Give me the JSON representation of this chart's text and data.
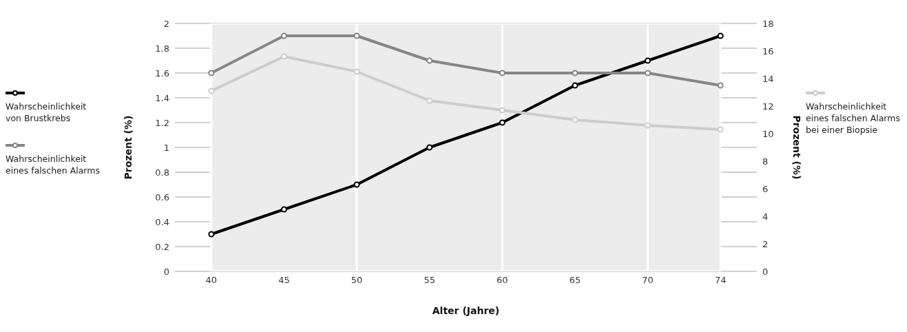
{
  "chart_data": {
    "type": "line",
    "xlabel": "Alter (Jahre)",
    "ylabel": "Prozent (%)",
    "y2label": "Prozent (%)",
    "categories": [
      "40",
      "45",
      "50",
      "55",
      "60",
      "65",
      "70",
      "74"
    ],
    "series": [
      {
        "name": "Wahrscheinlichkeit von Brustkrebs",
        "color": "#000000",
        "values": [
          0.3,
          0.5,
          0.7,
          1.0,
          1.2,
          1.5,
          1.7,
          1.9
        ]
      },
      {
        "name": "Wahrscheinlichkeit eines falschen Alarms",
        "color": "#868686",
        "values": [
          1.6,
          1.9,
          1.9,
          1.7,
          1.6,
          1.6,
          1.6,
          1.5
        ]
      },
      {
        "name": "Wahrscheinlichkeit eines falschen Alarms bei einer Biopsie",
        "color": "#cccccc",
        "axis": "y2",
        "values": [
          13.1,
          15.6,
          14.5,
          12.4,
          11.7,
          11.0,
          10.6,
          10.3
        ]
      }
    ],
    "ylim": [
      0,
      2
    ],
    "yticks": [
      0,
      0.2,
      0.4,
      0.6,
      0.8,
      1,
      1.2,
      1.4,
      1.6,
      1.8,
      2
    ],
    "y2lim": [
      0,
      18
    ],
    "y2ticks": [
      0,
      2,
      4,
      6,
      8,
      10,
      12,
      14,
      16,
      18
    ],
    "bands": [
      {
        "axis": "x",
        "from": "40",
        "to": "50",
        "color": "#ebeceb"
      },
      {
        "axis": "x",
        "from": "50",
        "to": "60",
        "color": "#ebeceb"
      },
      {
        "axis": "x",
        "from": "60",
        "to": "70",
        "color": "#ebeceb"
      },
      {
        "axis": "x",
        "from": "70",
        "to": "74",
        "color": "#ebeceb"
      }
    ],
    "grid": "y",
    "legend": "left",
    "marker": "circle",
    "line_style": "solid"
  }
}
